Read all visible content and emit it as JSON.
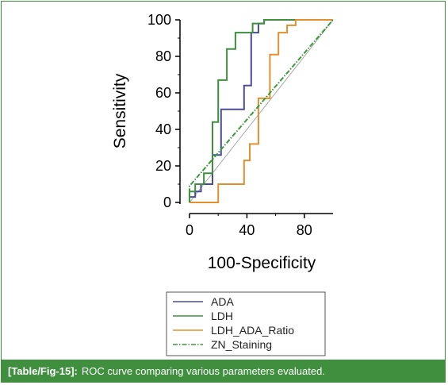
{
  "caption": {
    "label": "[Table/Fig-15]:",
    "text": "ROC curve comparing various parameters evaluated."
  },
  "colors": {
    "frame": "#3f8f3f",
    "caption_bg": "#3f8f3f",
    "caption_text": "#ffffff",
    "reference_line": "#aaaaaa"
  },
  "chart_data": {
    "type": "line",
    "title": "",
    "xlabel": "100-Specificity",
    "ylabel": "Sensitivity",
    "xlim": [
      0,
      100
    ],
    "ylim": [
      0,
      100
    ],
    "xticks": [
      0,
      40,
      80
    ],
    "yticks": [
      0,
      20,
      40,
      60,
      80,
      100
    ],
    "grid": false,
    "legend_position": "bottom",
    "reference_diagonal": true,
    "series": [
      {
        "name": "ADA",
        "color": "#4b4b9a",
        "dash": "solid",
        "points": [
          [
            0,
            0
          ],
          [
            0,
            3
          ],
          [
            4,
            3
          ],
          [
            4,
            6
          ],
          [
            8,
            6
          ],
          [
            8,
            10
          ],
          [
            16,
            10
          ],
          [
            16,
            26
          ],
          [
            22,
            26
          ],
          [
            22,
            51
          ],
          [
            38,
            51
          ],
          [
            38,
            64
          ],
          [
            43,
            64
          ],
          [
            43,
            93
          ],
          [
            48,
            93
          ],
          [
            48,
            98
          ],
          [
            52,
            98
          ],
          [
            52,
            100
          ],
          [
            100,
            100
          ]
        ]
      },
      {
        "name": "LDH",
        "color": "#3f8f3f",
        "dash": "solid",
        "points": [
          [
            0,
            0
          ],
          [
            0,
            6
          ],
          [
            4,
            6
          ],
          [
            4,
            10
          ],
          [
            10,
            10
          ],
          [
            10,
            16
          ],
          [
            16,
            16
          ],
          [
            16,
            44
          ],
          [
            20,
            44
          ],
          [
            20,
            67
          ],
          [
            26,
            67
          ],
          [
            26,
            84
          ],
          [
            32,
            84
          ],
          [
            32,
            93
          ],
          [
            44,
            93
          ],
          [
            44,
            98
          ],
          [
            52,
            98
          ],
          [
            52,
            100
          ],
          [
            80,
            100
          ]
        ]
      },
      {
        "name": "LDH_ADA_Ratio",
        "color": "#e0902e",
        "dash": "solid",
        "points": [
          [
            0,
            0
          ],
          [
            20,
            0
          ],
          [
            20,
            10
          ],
          [
            38,
            10
          ],
          [
            38,
            23
          ],
          [
            42,
            23
          ],
          [
            42,
            32
          ],
          [
            48,
            32
          ],
          [
            48,
            57
          ],
          [
            56,
            57
          ],
          [
            56,
            81
          ],
          [
            62,
            81
          ],
          [
            62,
            93
          ],
          [
            68,
            93
          ],
          [
            68,
            97
          ],
          [
            74,
            97
          ],
          [
            74,
            100
          ],
          [
            100,
            100
          ]
        ]
      },
      {
        "name": "ZN_Staining",
        "color": "#3a9a3a",
        "dash": "dashdot",
        "points": [
          [
            0,
            0
          ],
          [
            0,
            9
          ],
          [
            100,
            100
          ]
        ]
      }
    ]
  }
}
